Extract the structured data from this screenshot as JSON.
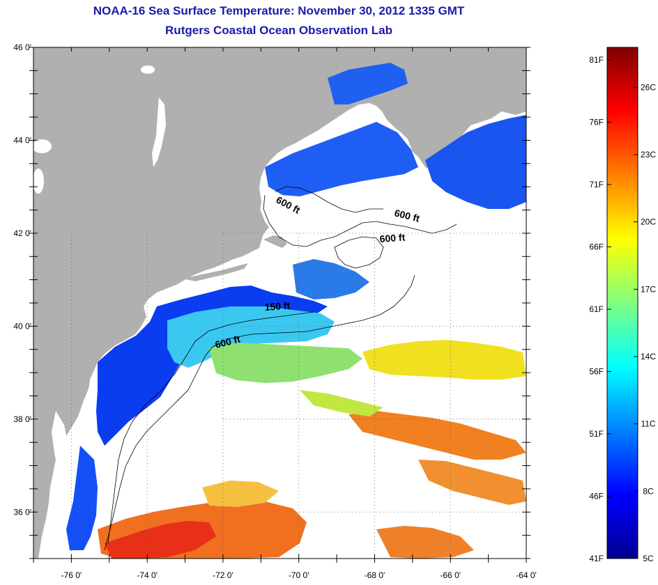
{
  "title": "NOAA-16 Sea Surface Temperature:  November 30, 2012 1335 GMT",
  "subtitle": "Rutgers Coastal Ocean Observation Lab",
  "map": {
    "latitude_labels": [
      "46 0'",
      "44 0'",
      "42 0'",
      "40 0'",
      "38 0'",
      "36 0'"
    ],
    "latitude_values": [
      46,
      44,
      42,
      40,
      38,
      36
    ],
    "longitude_labels": [
      "-76 0'",
      "-74 0'",
      "-72 0'",
      "-70 0'",
      "-68 0'",
      "-66 0'",
      "-64 0'"
    ],
    "longitude_values": [
      -76,
      -74,
      -72,
      -70,
      -68,
      -66,
      -64
    ],
    "lat_range": [
      35,
      46
    ],
    "lon_range": [
      -77,
      -64
    ],
    "land_color": "#b0b0b0",
    "no_data_color": "#ffffff",
    "depth_contours": [
      {
        "label": "600 ft"
      },
      {
        "label": "600 ft"
      },
      {
        "label": "600 ft"
      },
      {
        "label": "150 ft"
      },
      {
        "label": "600 ft"
      }
    ]
  },
  "colorbar": {
    "fahrenheit_labels": [
      "81F",
      "76F",
      "71F",
      "66F",
      "61F",
      "56F",
      "51F",
      "46F",
      "41F"
    ],
    "fahrenheit_values": [
      81,
      76,
      71,
      66,
      61,
      56,
      51,
      46,
      41
    ],
    "celsius_labels": [
      "26C",
      "23C",
      "20C",
      "17C",
      "14C",
      "11C",
      "8C",
      "5C"
    ],
    "celsius_values": [
      26,
      23,
      20,
      17,
      14,
      11,
      8,
      5
    ],
    "range_f": [
      41,
      82
    ],
    "colormap": "jet"
  }
}
